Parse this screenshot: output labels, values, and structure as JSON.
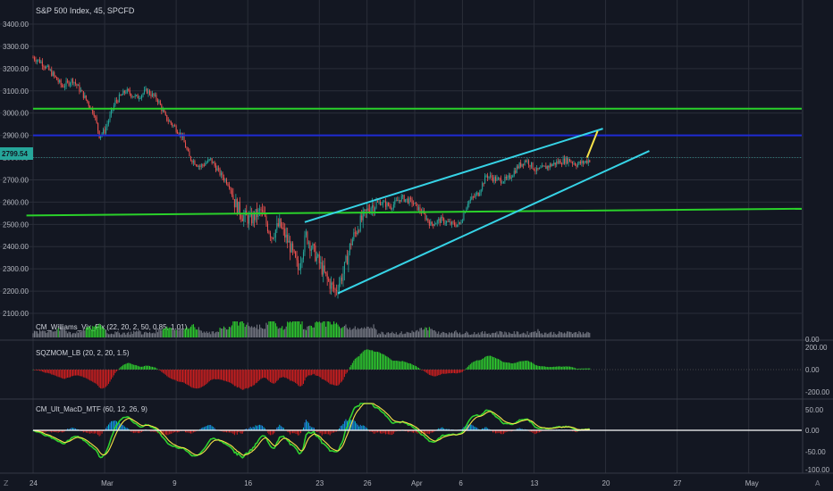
{
  "chart_data": {
    "type": "candlestick",
    "title": "S&P 500 Index, 45, SPCFD",
    "last_price": "2799.54",
    "price_axis": {
      "ylim": [
        2080,
        3420
      ],
      "ticks": [
        "3400.00",
        "3300.00",
        "3200.00",
        "3100.00",
        "3000.00",
        "2900.00",
        "2800.00",
        "2700.00",
        "2600.00",
        "2500.00",
        "2400.00",
        "2300.00",
        "2200.00",
        "2100.00"
      ]
    },
    "x_axis": {
      "ticks": [
        {
          "label": "24",
          "i": 0
        },
        {
          "label": "Mar",
          "i": 54
        },
        {
          "label": "9",
          "i": 108
        },
        {
          "label": "16",
          "i": 162
        },
        {
          "label": "23",
          "i": 216
        },
        {
          "label": "26",
          "i": 252
        },
        {
          "label": "Apr",
          "i": 288
        },
        {
          "label": "6",
          "i": 324
        },
        {
          "label": "13",
          "i": 378
        },
        {
          "label": "20",
          "i": 432
        },
        {
          "label": "27",
          "i": 486
        },
        {
          "label": "May",
          "i": 540
        }
      ],
      "bars_total": 580
    },
    "price_keypoints": [
      [
        0,
        3250
      ],
      [
        6,
        3230
      ],
      [
        14,
        3180
      ],
      [
        22,
        3120
      ],
      [
        30,
        3150
      ],
      [
        38,
        3080
      ],
      [
        46,
        3000
      ],
      [
        50,
        2900
      ],
      [
        54,
        2920
      ],
      [
        62,
        3050
      ],
      [
        70,
        3100
      ],
      [
        78,
        3070
      ],
      [
        86,
        3100
      ],
      [
        94,
        3060
      ],
      [
        100,
        2980
      ],
      [
        108,
        2930
      ],
      [
        112,
        2900
      ],
      [
        118,
        2800
      ],
      [
        126,
        2760
      ],
      [
        134,
        2790
      ],
      [
        142,
        2720
      ],
      [
        148,
        2680
      ],
      [
        152,
        2600
      ],
      [
        158,
        2540
      ],
      [
        164,
        2520
      ],
      [
        172,
        2560
      ],
      [
        180,
        2450
      ],
      [
        186,
        2500
      ],
      [
        194,
        2400
      ],
      [
        200,
        2300
      ],
      [
        206,
        2450
      ],
      [
        214,
        2350
      ],
      [
        222,
        2250
      ],
      [
        228,
        2200
      ],
      [
        234,
        2280
      ],
      [
        240,
        2420
      ],
      [
        246,
        2500
      ],
      [
        254,
        2580
      ],
      [
        262,
        2600
      ],
      [
        270,
        2580
      ],
      [
        278,
        2620
      ],
      [
        286,
        2600
      ],
      [
        294,
        2550
      ],
      [
        300,
        2500
      ],
      [
        308,
        2520
      ],
      [
        316,
        2500
      ],
      [
        322,
        2500
      ],
      [
        328,
        2600
      ],
      [
        336,
        2640
      ],
      [
        342,
        2720
      ],
      [
        350,
        2700
      ],
      [
        358,
        2700
      ],
      [
        366,
        2760
      ],
      [
        372,
        2790
      ],
      [
        380,
        2740
      ],
      [
        388,
        2760
      ],
      [
        396,
        2780
      ],
      [
        404,
        2790
      ],
      [
        410,
        2770
      ],
      [
        416,
        2780
      ],
      [
        420,
        2790
      ]
    ],
    "horizontal_levels": [
      {
        "price": 3020,
        "color": "#2ad12a"
      },
      {
        "price": 2900,
        "color": "#1f2bd4"
      }
    ],
    "trend_lines": [
      {
        "from": [
          -5,
          2540
        ],
        "to": [
          580,
          2570
        ],
        "color": "#2ad12a"
      },
      {
        "from": [
          205,
          2510
        ],
        "to": [
          430,
          2930
        ],
        "color": "#36d3e6"
      },
      {
        "from": [
          230,
          2190
        ],
        "to": [
          465,
          2830
        ],
        "color": "#36d3e6"
      },
      {
        "from": [
          418,
          2800
        ],
        "to": [
          426,
          2920
        ],
        "color": "#f7e249"
      }
    ],
    "indicators": [
      {
        "name": "CM_Williams_Vix_Fix (22, 20, 2, 50, 0.85, 1.01)",
        "ticks": [
          "0.00"
        ],
        "ylim": [
          0,
          1
        ]
      },
      {
        "name": "SQZMOM_LB (20, 2, 20, 1.5)",
        "ticks": [
          "200.00",
          "0.00",
          "-200.00"
        ],
        "ylim": [
          -250,
          250
        ]
      },
      {
        "name": "CM_Ult_MacD_MTF (60, 12, 26, 9)",
        "ticks": [
          "50.00",
          "0.00",
          "-50.00",
          "-100.00"
        ],
        "ylim": [
          -110,
          70
        ]
      }
    ],
    "grid": true,
    "colors": {
      "background": "#131722",
      "up": "#26a69a",
      "down": "#ef5350",
      "grid": "#2a2e39"
    }
  },
  "ui": {
    "left_button": "Z",
    "right_button": "A"
  }
}
